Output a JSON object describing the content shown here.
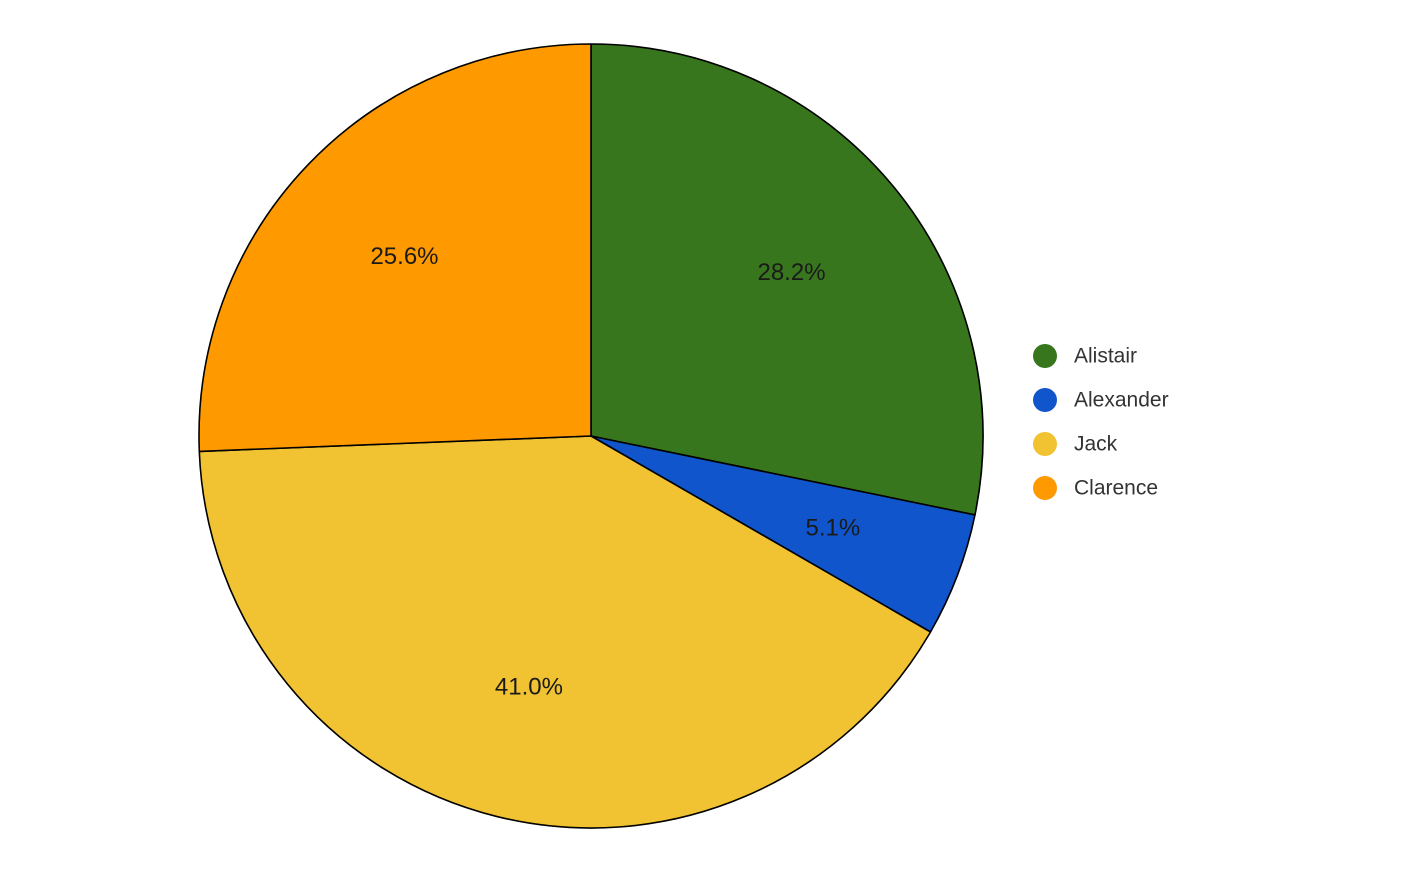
{
  "chart_data": {
    "type": "pie",
    "title": "",
    "legend_position": "right",
    "start_angle_deg": 0,
    "direction": "clockwise",
    "slices": [
      {
        "name": "Alistair",
        "value": 28.2,
        "label": "28.2%",
        "color": "#38761d"
      },
      {
        "name": "Alexander",
        "value": 5.1,
        "label": "5.1%",
        "color": "#1155cc"
      },
      {
        "name": "Jack",
        "value": 41.0,
        "label": "41.0%",
        "color": "#f1c232"
      },
      {
        "name": "Clarence",
        "value": 25.6,
        "label": "25.6%",
        "color": "#ff9900"
      }
    ]
  }
}
